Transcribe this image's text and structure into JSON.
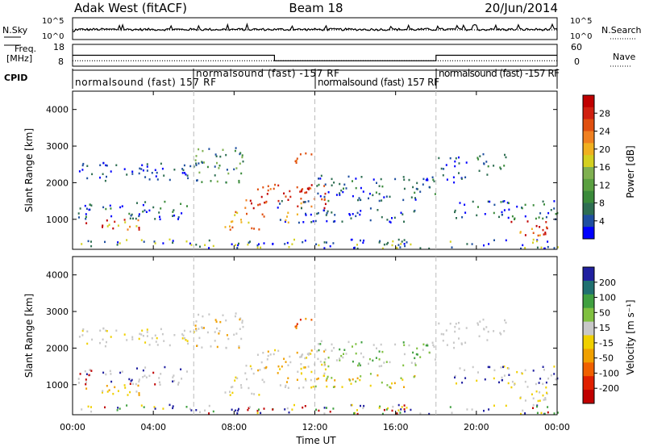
{
  "header": {
    "station": "Adak West (fitACF)",
    "beam": "Beam 18",
    "date": "20/Jun/2014"
  },
  "labels": {
    "nsky": "N.Sky",
    "nsearch": "N.Search",
    "freq_line1": "Freq.",
    "freq_line2": "[MHz]",
    "nave": "Nave",
    "cpid": "CPID",
    "xlabel": "Time UT",
    "ylabel": "Slant Range [km]",
    "power_cb_label": "Power [dB]",
    "velocity_cb_label": "Velocity [m s⁻¹]"
  },
  "cpid_segments": [
    {
      "text": "normalsound (fast) 157 RF",
      "start_h": 0
    },
    {
      "text": "normalsound (fast) -157 RF",
      "start_h": 6
    },
    {
      "text": "normalsound (fast) 157 RF",
      "start_h": 12
    },
    {
      "text": "normalsound (fast) -157 RF",
      "start_h": 18
    }
  ],
  "colors": {
    "power_scale": [
      "#0000ff",
      "#1f4fa0",
      "#2e6e52",
      "#3a8a3a",
      "#5aa040",
      "#7fb050",
      "#d4d020",
      "#f0b020",
      "#f08020",
      "#e05010",
      "#d02010",
      "#c00000"
    ],
    "velocity_scale": [
      "#2020a0",
      "#207070",
      "#40a040",
      "#80c040",
      "#c8c8c8",
      "#f0d000",
      "#f0a000",
      "#f06000",
      "#e02000",
      "#c00000"
    ]
  },
  "chart_data": [
    {
      "type": "line",
      "name": "noise-panel",
      "left_axis_ticks": [
        "10^5",
        "10^0"
      ],
      "right_axis_ticks": [
        "10^5",
        "10^0"
      ],
      "series": [
        {
          "name": "N.Sky"
        },
        {
          "name": "N.Search"
        }
      ]
    },
    {
      "type": "line",
      "name": "freq-nave-panel",
      "left_axis_ticks": [
        "18",
        "8"
      ],
      "right_axis_ticks": [
        "60",
        "0"
      ],
      "series": [
        {
          "name": "Freq.",
          "x": [
            0,
            10,
            10,
            18,
            18,
            24
          ],
          "y": [
            13,
            13,
            10.5,
            10.5,
            13,
            13
          ]
        },
        {
          "name": "Nave",
          "x": [
            0,
            24
          ],
          "y": [
            15,
            15
          ]
        }
      ]
    },
    {
      "type": "heatmap",
      "name": "power-panel",
      "x_range_h": [
        0,
        24
      ],
      "y_range_km": [
        180,
        4500
      ],
      "y_ticks": [
        1000,
        2000,
        3000,
        4000
      ],
      "colorbar_ticks": [
        4,
        8,
        12,
        16,
        20,
        24,
        28
      ],
      "colorbar_range": [
        0,
        32
      ]
    },
    {
      "type": "heatmap",
      "name": "velocity-panel",
      "x_range_h": [
        0,
        24
      ],
      "y_range_km": [
        180,
        4500
      ],
      "y_ticks": [
        1000,
        2000,
        3000,
        4000
      ],
      "colorbar_ticks": [
        200,
        100,
        50,
        15,
        -15,
        -50,
        -100,
        -200
      ],
      "x_tick_labels": [
        "00:00",
        "04:00",
        "08:00",
        "12:00",
        "16:00",
        "20:00",
        "00:00"
      ]
    }
  ]
}
